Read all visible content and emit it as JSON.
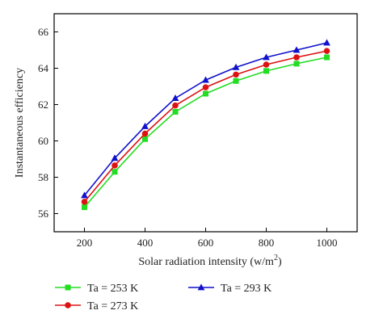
{
  "chart_data": {
    "type": "line",
    "title": "",
    "xlabel": "Solar radiation intensity (w/m",
    "xlabel_superscript": "2",
    "xlabel_suffix": ")",
    "ylabel": "Instantaneous efficiency",
    "x": [
      200,
      300,
      400,
      500,
      600,
      700,
      800,
      900,
      1000
    ],
    "xlim": [
      100,
      1100
    ],
    "ylim": [
      55,
      67
    ],
    "xticks": [
      "200",
      "400",
      "600",
      "800",
      "1000"
    ],
    "yticks": [
      "56",
      "58",
      "60",
      "62",
      "64",
      "66"
    ],
    "grid": false,
    "legend_position": "bottom",
    "series": [
      {
        "name": "Ta = 253 K",
        "color": "#22dd22",
        "marker": "square",
        "values": [
          56.35,
          58.3,
          60.1,
          61.6,
          62.6,
          63.3,
          63.85,
          64.25,
          64.6
        ]
      },
      {
        "name": "Ta = 273 K",
        "color": "#dd1111",
        "marker": "circle",
        "values": [
          56.65,
          58.65,
          60.4,
          61.95,
          62.95,
          63.65,
          64.2,
          64.6,
          64.95
        ]
      },
      {
        "name": "Ta = 293 K",
        "color": "#1111cc",
        "marker": "triangle",
        "values": [
          57.0,
          59.05,
          60.8,
          62.35,
          63.35,
          64.05,
          64.6,
          65.0,
          65.4
        ]
      }
    ]
  }
}
